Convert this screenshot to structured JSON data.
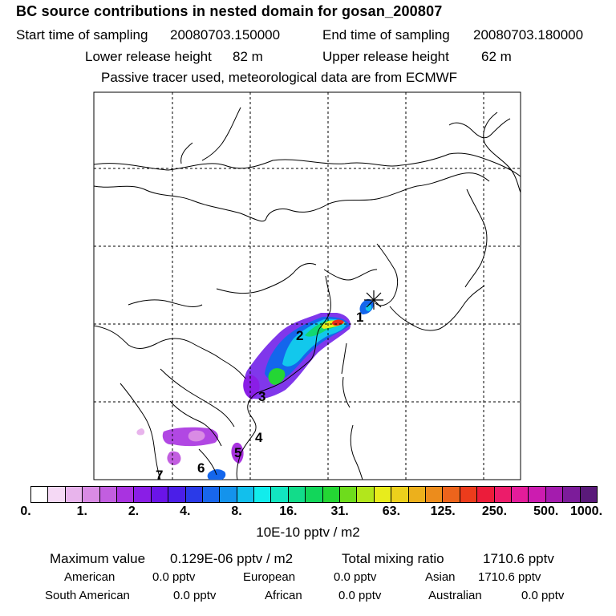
{
  "title": "BC  source contributions in nested domain for gosan_200807",
  "header": {
    "start_label": "Start time of sampling",
    "start_value": "20080703.150000",
    "end_label": "End time of sampling",
    "end_value": "20080703.180000",
    "lower_label": "Lower release height",
    "lower_value": "82 m",
    "upper_label": "Upper release height",
    "upper_value": "62 m",
    "note": "Passive tracer used, meteorological data are from ECMWF"
  },
  "map": {
    "region_labels": [
      "1",
      "2",
      "3",
      "4",
      "5",
      "6",
      "7"
    ],
    "receptor_icon": "asterisk-marker-icon",
    "grid": true
  },
  "colorbar": {
    "colors": [
      "#ffffff",
      "#f5d9f5",
      "#e8b4ec",
      "#d98be4",
      "#c25ee0",
      "#a933e0",
      "#8a1ee6",
      "#6a14e8",
      "#4b1ee8",
      "#2a3ae8",
      "#1866ec",
      "#1493ec",
      "#12bfec",
      "#12ecec",
      "#12e6c0",
      "#12dc8a",
      "#12d65a",
      "#24d634",
      "#6edc1c",
      "#b2e61c",
      "#e8ec1c",
      "#ecd01c",
      "#ecb01c",
      "#ec8c1c",
      "#ec641c",
      "#ec3c1c",
      "#ec1c3a",
      "#ec1c6a",
      "#e41c9a",
      "#cc1cb0",
      "#a41cae",
      "#7c1c9a",
      "#5a1a7a"
    ],
    "ticks": [
      "0.",
      "1.",
      "2.",
      "4.",
      "8.",
      "16.",
      "31.",
      "63.",
      "125.",
      "250.",
      "500.",
      "1000."
    ],
    "unit": "10E-10 pptv / m2"
  },
  "stats": {
    "max_label": "Maximum value",
    "max_value": "0.129E-06 pptv / m2",
    "total_label": "Total mixing ratio",
    "total_value": "1710.6 pptv",
    "american_label": "American",
    "american_value": "0.0 pptv",
    "european_label": "European",
    "european_value": "0.0 pptv",
    "asian_label": "Asian",
    "asian_value": "1710.6 pptv",
    "south_american_label": "South American",
    "south_american_value": "0.0 pptv",
    "african_label": "African",
    "african_value": "0.0 pptv",
    "australian_label": "Australian",
    "australian_value": "0.0 pptv"
  }
}
